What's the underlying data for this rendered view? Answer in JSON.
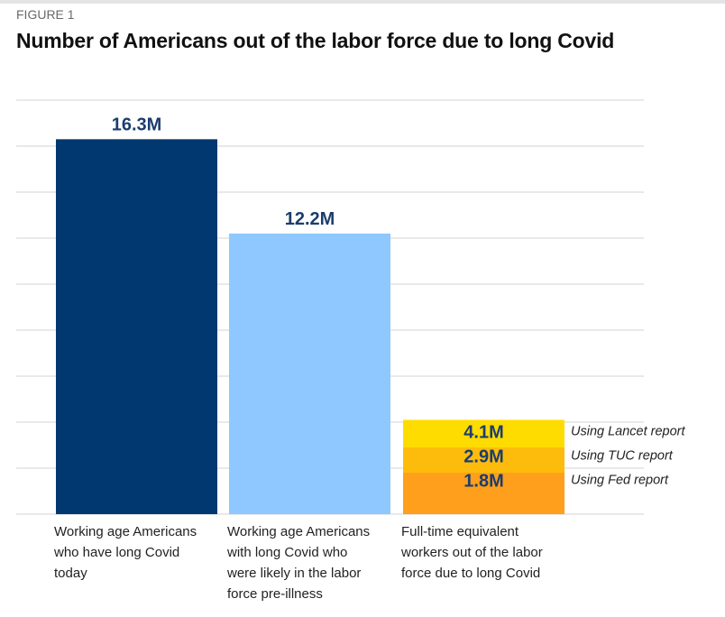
{
  "figure_label": "FIGURE 1",
  "chart_data": {
    "type": "bar",
    "title": "Number of Americans out of the labor force due to long Covid",
    "ylim": [
      0,
      18
    ],
    "grid": true,
    "y_gridline_step": 2,
    "categories": [
      [
        "Working age Americans",
        "who have long Covid",
        "today"
      ],
      [
        "Working age Americans",
        "with long Covid who",
        "were likely in the labor",
        "force pre-illness"
      ],
      [
        "Full-time equivalent",
        "workers out of the labor",
        "force due to long Covid"
      ]
    ],
    "bars": [
      {
        "value": 16.3,
        "label": "16.3M",
        "color": "#00386f"
      },
      {
        "value": 12.2,
        "label": "12.2M",
        "color": "#8ec8ff"
      },
      {
        "estimates": [
          {
            "value": 4.1,
            "label": "4.1M",
            "note": "Using Lancet report",
            "color": "#ffdc00"
          },
          {
            "value": 2.9,
            "label": "2.9M",
            "note": "Using TUC report",
            "color": "#fdbc0c"
          },
          {
            "value": 1.8,
            "label": "1.8M",
            "note": "Using Fed report",
            "color": "#ff9f1c"
          }
        ]
      }
    ],
    "label_color": "#1b3d6e"
  }
}
